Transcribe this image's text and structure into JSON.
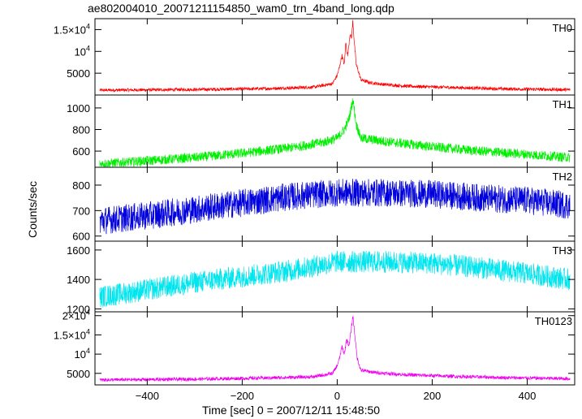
{
  "chart_data": {
    "type": "line",
    "title": "ae802004010_20071211154850_wam0_trn_4band_long.qdp",
    "xlabel": "Time [sec] 0 = 2007/12/11 15:48:50",
    "ylabel": "Counts/sec",
    "xlim": [
      -510,
      500
    ],
    "xticks": [
      "−400",
      "−200",
      "0",
      "200",
      "400"
    ],
    "panels": [
      {
        "name": "TH0",
        "color": "#ff0000",
        "ylim": [
          0,
          17500
        ],
        "yticks": [
          {
            "v": 5000,
            "t": "5000"
          },
          {
            "v": 10000,
            "t": "10",
            "sup": "4"
          },
          {
            "v": 15000,
            "t": "1.5×10",
            "sup": "4"
          }
        ],
        "series": [
          {
            "x": -500,
            "y": 1100
          },
          {
            "x": -300,
            "y": 1250
          },
          {
            "x": -150,
            "y": 1450
          },
          {
            "x": -50,
            "y": 1800
          },
          {
            "x": -10,
            "y": 2600
          },
          {
            "x": 0,
            "y": 4500
          },
          {
            "x": 5,
            "y": 6500
          },
          {
            "x": 10,
            "y": 9000
          },
          {
            "x": 15,
            "y": 7000
          },
          {
            "x": 18,
            "y": 12000
          },
          {
            "x": 22,
            "y": 9000
          },
          {
            "x": 27,
            "y": 14000
          },
          {
            "x": 30,
            "y": 13000
          },
          {
            "x": 33,
            "y": 17000
          },
          {
            "x": 36,
            "y": 12000
          },
          {
            "x": 40,
            "y": 7000
          },
          {
            "x": 50,
            "y": 3500
          },
          {
            "x": 70,
            "y": 2800
          },
          {
            "x": 100,
            "y": 2400
          },
          {
            "x": 150,
            "y": 2000
          },
          {
            "x": 250,
            "y": 1700
          },
          {
            "x": 350,
            "y": 1400
          },
          {
            "x": 490,
            "y": 1200
          }
        ]
      },
      {
        "name": "TH1",
        "color": "#00ee00",
        "ylim": [
          450,
          1120
        ],
        "yticks": [
          {
            "v": 600,
            "t": "600"
          },
          {
            "v": 800,
            "t": "800"
          },
          {
            "v": 1000,
            "t": "1000"
          }
        ],
        "series": [
          {
            "x": -500,
            "y": 480
          },
          {
            "x": -400,
            "y": 510
          },
          {
            "x": -300,
            "y": 540
          },
          {
            "x": -200,
            "y": 580
          },
          {
            "x": -100,
            "y": 630
          },
          {
            "x": -30,
            "y": 680
          },
          {
            "x": 0,
            "y": 720
          },
          {
            "x": 15,
            "y": 800
          },
          {
            "x": 25,
            "y": 900
          },
          {
            "x": 33,
            "y": 1080
          },
          {
            "x": 40,
            "y": 850
          },
          {
            "x": 50,
            "y": 720
          },
          {
            "x": 100,
            "y": 690
          },
          {
            "x": 200,
            "y": 640
          },
          {
            "x": 300,
            "y": 600
          },
          {
            "x": 400,
            "y": 570
          },
          {
            "x": 490,
            "y": 540
          }
        ]
      },
      {
        "name": "TH2",
        "color": "#0000dd",
        "ylim": [
          580,
          870
        ],
        "yticks": [
          {
            "v": 600,
            "t": "600"
          },
          {
            "v": 700,
            "t": "700"
          },
          {
            "v": 800,
            "t": "800"
          }
        ],
        "series": [
          {
            "x": -500,
            "y": 660
          },
          {
            "x": -400,
            "y": 680
          },
          {
            "x": -300,
            "y": 705
          },
          {
            "x": -200,
            "y": 730
          },
          {
            "x": -100,
            "y": 755
          },
          {
            "x": 0,
            "y": 770
          },
          {
            "x": 100,
            "y": 770
          },
          {
            "x": 200,
            "y": 765
          },
          {
            "x": 300,
            "y": 750
          },
          {
            "x": 400,
            "y": 740
          },
          {
            "x": 490,
            "y": 720
          }
        ]
      },
      {
        "name": "TH3",
        "color": "#00e5ee",
        "ylim": [
          1180,
          1660
        ],
        "yticks": [
          {
            "v": 1200,
            "t": "1200"
          },
          {
            "v": 1400,
            "t": "1400"
          },
          {
            "v": 1600,
            "t": "1600"
          }
        ],
        "series": [
          {
            "x": -500,
            "y": 1280
          },
          {
            "x": -400,
            "y": 1330
          },
          {
            "x": -300,
            "y": 1380
          },
          {
            "x": -200,
            "y": 1420
          },
          {
            "x": -100,
            "y": 1460
          },
          {
            "x": 0,
            "y": 1520
          },
          {
            "x": 100,
            "y": 1520
          },
          {
            "x": 200,
            "y": 1510
          },
          {
            "x": 300,
            "y": 1480
          },
          {
            "x": 400,
            "y": 1440
          },
          {
            "x": 490,
            "y": 1400
          }
        ]
      },
      {
        "name": "TH0123",
        "color": "#ee00ee",
        "ylim": [
          2000,
          21000
        ],
        "yticks": [
          {
            "v": 5000,
            "t": "5000"
          },
          {
            "v": 10000,
            "t": "10",
            "sup": "4"
          },
          {
            "v": 15000,
            "t": "1.5×10",
            "sup": "4"
          },
          {
            "v": 20000,
            "t": "2×10",
            "sup": "4"
          }
        ],
        "series": [
          {
            "x": -500,
            "y": 3300
          },
          {
            "x": -300,
            "y": 3500
          },
          {
            "x": -150,
            "y": 3800
          },
          {
            "x": -50,
            "y": 4100
          },
          {
            "x": -10,
            "y": 5000
          },
          {
            "x": 0,
            "y": 7000
          },
          {
            "x": 5,
            "y": 9000
          },
          {
            "x": 10,
            "y": 12000
          },
          {
            "x": 15,
            "y": 10000
          },
          {
            "x": 20,
            "y": 14000
          },
          {
            "x": 25,
            "y": 12000
          },
          {
            "x": 30,
            "y": 17000
          },
          {
            "x": 33,
            "y": 20000
          },
          {
            "x": 37,
            "y": 15000
          },
          {
            "x": 42,
            "y": 9000
          },
          {
            "x": 50,
            "y": 5800
          },
          {
            "x": 80,
            "y": 5200
          },
          {
            "x": 150,
            "y": 4600
          },
          {
            "x": 250,
            "y": 4200
          },
          {
            "x": 350,
            "y": 3900
          },
          {
            "x": 490,
            "y": 3600
          }
        ]
      }
    ]
  }
}
